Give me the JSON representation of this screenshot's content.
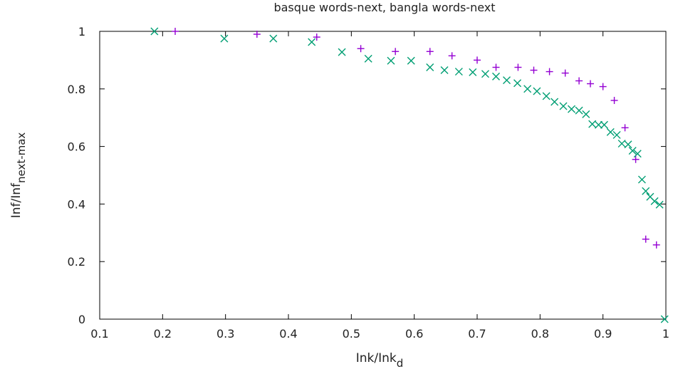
{
  "chart_data": {
    "type": "scatter",
    "title": "basque words-next, bangla words-next",
    "xlabel": "Ink/Ink",
    "xlabel_sub": "d",
    "ylabel": "Inf/Inf",
    "ylabel_sub": "next-max",
    "xlim": [
      0.1,
      1.0
    ],
    "ylim": [
      0,
      1
    ],
    "x_ticks": [
      "0.1",
      "0.2",
      "0.3",
      "0.4",
      "0.5",
      "0.6",
      "0.7",
      "0.8",
      "0.9",
      "1"
    ],
    "y_ticks": [
      "0",
      "0.2",
      "0.4",
      "0.6",
      "0.8",
      "1"
    ],
    "grid": false,
    "series": [
      {
        "marker": "plus",
        "color": "#9400d3",
        "points": [
          [
            0.22,
            1.0
          ],
          [
            0.35,
            0.99
          ],
          [
            0.445,
            0.98
          ],
          [
            0.515,
            0.94
          ],
          [
            0.57,
            0.93
          ],
          [
            0.625,
            0.93
          ],
          [
            0.66,
            0.915
          ],
          [
            0.7,
            0.9
          ],
          [
            0.73,
            0.875
          ],
          [
            0.765,
            0.875
          ],
          [
            0.79,
            0.865
          ],
          [
            0.815,
            0.86
          ],
          [
            0.84,
            0.855
          ],
          [
            0.862,
            0.828
          ],
          [
            0.88,
            0.818
          ],
          [
            0.9,
            0.808
          ],
          [
            0.918,
            0.76
          ],
          [
            0.935,
            0.665
          ],
          [
            0.952,
            0.555
          ],
          [
            0.968,
            0.278
          ],
          [
            0.985,
            0.258
          ]
        ]
      },
      {
        "marker": "cross",
        "color": "#009e73",
        "points": [
          [
            0.187,
            1.0
          ],
          [
            0.298,
            0.975
          ],
          [
            0.376,
            0.975
          ],
          [
            0.437,
            0.963
          ],
          [
            0.485,
            0.928
          ],
          [
            0.527,
            0.905
          ],
          [
            0.563,
            0.898
          ],
          [
            0.595,
            0.898
          ],
          [
            0.625,
            0.875
          ],
          [
            0.648,
            0.865
          ],
          [
            0.671,
            0.86
          ],
          [
            0.693,
            0.858
          ],
          [
            0.713,
            0.852
          ],
          [
            0.73,
            0.843
          ],
          [
            0.747,
            0.83
          ],
          [
            0.764,
            0.82
          ],
          [
            0.78,
            0.8
          ],
          [
            0.795,
            0.792
          ],
          [
            0.81,
            0.775
          ],
          [
            0.823,
            0.755
          ],
          [
            0.837,
            0.74
          ],
          [
            0.85,
            0.73
          ],
          [
            0.862,
            0.725
          ],
          [
            0.873,
            0.712
          ],
          [
            0.883,
            0.678
          ],
          [
            0.893,
            0.675
          ],
          [
            0.902,
            0.675
          ],
          [
            0.912,
            0.65
          ],
          [
            0.922,
            0.64
          ],
          [
            0.93,
            0.61
          ],
          [
            0.94,
            0.607
          ],
          [
            0.947,
            0.585
          ],
          [
            0.955,
            0.575
          ],
          [
            0.962,
            0.485
          ],
          [
            0.968,
            0.445
          ],
          [
            0.975,
            0.425
          ],
          [
            0.982,
            0.41
          ],
          [
            0.99,
            0.398
          ],
          [
            0.998,
            0.0
          ]
        ]
      }
    ]
  }
}
